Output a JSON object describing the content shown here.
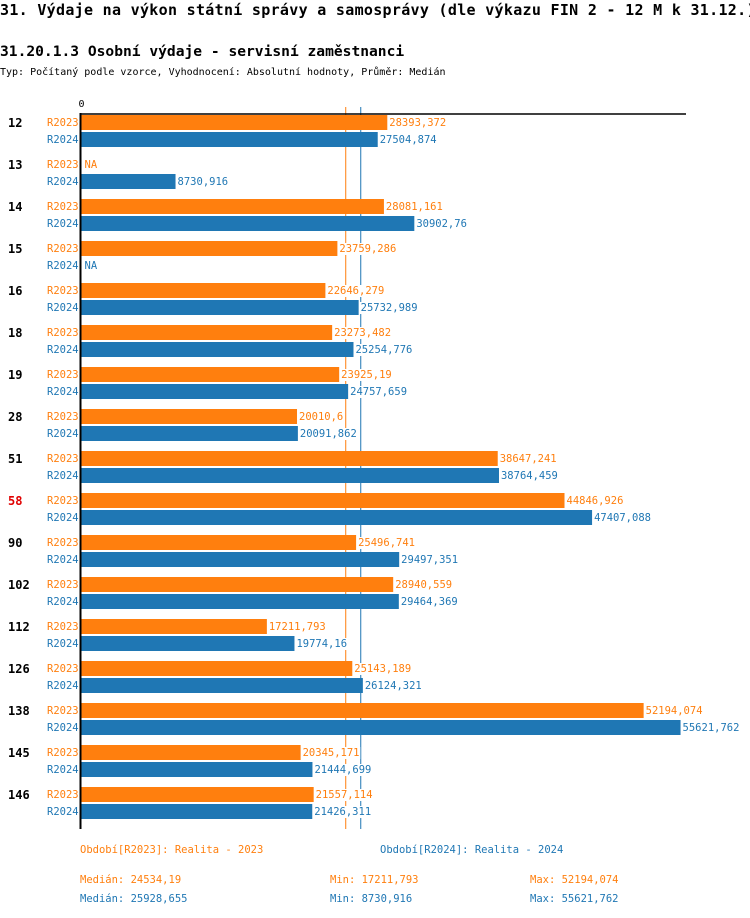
{
  "header": {
    "title": "31. Výdaje na výkon státní správy a samosprávy (dle výkazu FIN 2 - 12 M k 31.12.)",
    "subtitle": "31.20.1.3 Osobní výdaje - servisní zaměstnanci",
    "info": "Typ: Počítaný podle vzorce, Vyhodnocení: Absolutní hodnoty, Průměr: Medián"
  },
  "colors": {
    "R2023": "#ff7f0e",
    "R2024": "#1f77b4",
    "highlight": "#e00000",
    "axis": "#000000"
  },
  "chart_data": {
    "type": "bar",
    "orientation": "horizontal",
    "axis_zero_label": "0",
    "categories": [
      "12",
      "13",
      "14",
      "15",
      "16",
      "18",
      "19",
      "28",
      "51",
      "58",
      "90",
      "102",
      "112",
      "126",
      "138",
      "145",
      "146"
    ],
    "highlighted_category": "58",
    "series": [
      {
        "name": "R2023",
        "label": "Období[R2023]: Realita - 2023",
        "values": [
          28393.372,
          null,
          28081.161,
          23759.286,
          22646.279,
          23273.482,
          23925.19,
          20010.6,
          38647.241,
          44846.926,
          25496.741,
          28940.559,
          17211.793,
          25143.189,
          52194.074,
          20345.171,
          21557.114
        ],
        "value_labels": [
          "28393,372",
          "NA",
          "28081,161",
          "23759,286",
          "22646,279",
          "23273,482",
          "23925,19",
          "20010,6",
          "38647,241",
          "44846,926",
          "25496,741",
          "28940,559",
          "17211,793",
          "25143,189",
          "52194,074",
          "20345,171",
          "21557,114"
        ],
        "median": 24534.19,
        "stats": {
          "median": "Medián: 24534,19",
          "min": "Min: 17211,793",
          "max": "Max: 52194,074"
        }
      },
      {
        "name": "R2024",
        "label": "Období[R2024]: Realita - 2024",
        "values": [
          27504.874,
          8730.916,
          30902.76,
          null,
          25732.989,
          25254.776,
          24757.659,
          20091.862,
          38764.459,
          47407.088,
          29497.351,
          29464.369,
          19774.16,
          26124.321,
          55621.762,
          21444.699,
          21426.311
        ],
        "value_labels": [
          "27504,874",
          "8730,916",
          "30902,76",
          "NA",
          "25732,989",
          "25254,776",
          "24757,659",
          "20091,862",
          "38764,459",
          "47407,088",
          "29497,351",
          "29464,369",
          "19774,16",
          "26124,321",
          "55621,762",
          "21444,699",
          "21426,311"
        ],
        "median": 25928.655,
        "stats": {
          "median": "Medián: 25928,655",
          "min": "Min: 8730,916",
          "max": "Max: 55621,762"
        }
      }
    ],
    "xlim": [
      0,
      56000
    ],
    "grid": false,
    "legend": "bottom"
  }
}
